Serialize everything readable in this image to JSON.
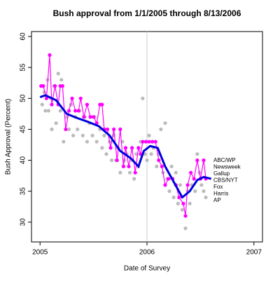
{
  "chart_data": {
    "type": "scatter",
    "title": "Bush approval from 1/1/2005 through 8/13/2006",
    "x_label": "Date of Survey",
    "y_label": "Bush Approval (Percent)",
    "xlim": [
      2004.92,
      2007.08
    ],
    "ylim": [
      26.8,
      60.8
    ],
    "xticks": [
      2005,
      2006,
      2007
    ],
    "yticks": [
      30,
      35,
      40,
      45,
      50,
      55,
      60
    ],
    "vline": 2006,
    "poll_labels": [
      "ABC/WP",
      "Newsweek",
      "Gallup",
      "CBS/NYT",
      "Fox",
      "Harris",
      "AP"
    ],
    "series": [
      {
        "color": "#bbbbbb",
        "x": [
          2005.02,
          2005.04,
          2005.05,
          2005.07,
          2005.08,
          2005.1,
          2005.11,
          2005.13,
          2005.15,
          2005.17,
          2005.19,
          2005.2,
          2005.22,
          2005.25,
          2005.27,
          2005.29,
          2005.31,
          2005.33,
          2005.35,
          2005.37,
          2005.4,
          2005.42,
          2005.44,
          2005.46,
          2005.49,
          2005.51,
          2005.53,
          2005.56,
          2005.58,
          2005.6,
          2005.62,
          2005.65,
          2005.67,
          2005.69,
          2005.71,
          2005.73,
          2005.75,
          2005.77,
          2005.79,
          2005.81,
          2005.84,
          2005.86,
          2005.88,
          2005.9,
          2005.92,
          2005.94,
          2005.96,
          2005.98,
          2006.0,
          2006.02,
          2006.04,
          2006.06,
          2006.09,
          2006.11,
          2006.13,
          2006.15,
          2006.17,
          2006.19,
          2006.21,
          2006.23,
          2006.25,
          2006.27,
          2006.29,
          2006.31,
          2006.33,
          2006.36,
          2006.38,
          2006.4,
          2006.42,
          2006.45,
          2006.47,
          2006.49,
          2006.51,
          2006.53,
          2006.55
        ],
        "values": [
          49,
          51,
          48,
          53,
          48,
          50,
          45,
          52,
          46,
          54,
          48,
          53,
          43,
          47,
          45,
          49,
          44,
          47,
          45,
          48,
          44,
          47,
          43,
          46,
          44,
          47,
          43,
          45,
          42,
          44,
          41,
          43,
          40,
          44,
          40,
          42,
          38,
          43,
          40,
          41,
          38,
          40,
          37,
          41,
          39,
          43,
          50,
          41,
          40,
          44,
          41,
          42,
          39,
          41,
          45,
          38,
          46,
          37,
          35,
          39,
          34,
          38,
          33,
          36,
          32,
          29,
          35,
          33,
          36,
          35,
          41,
          38,
          36,
          35,
          34
        ]
      },
      {
        "name": "Gallup",
        "color": "#ff00ff",
        "x": [
          2005.01,
          2005.03,
          2005.06,
          2005.09,
          2005.11,
          2005.14,
          2005.17,
          2005.19,
          2005.21,
          2005.24,
          2005.27,
          2005.3,
          2005.33,
          2005.36,
          2005.38,
          2005.41,
          2005.44,
          2005.47,
          2005.5,
          2005.53,
          2005.56,
          2005.58,
          2005.6,
          2005.63,
          2005.66,
          2005.69,
          2005.72,
          2005.75,
          2005.78,
          2005.8,
          2005.83,
          2005.86,
          2005.89,
          2005.92,
          2005.94,
          2005.96,
          2005.99,
          2006.02,
          2006.05,
          2006.08,
          2006.11,
          2006.14,
          2006.17,
          2006.2,
          2006.24,
          2006.27,
          2006.3,
          2006.34,
          2006.36,
          2006.38,
          2006.41,
          2006.44,
          2006.47,
          2006.5,
          2006.53,
          2006.55
        ],
        "values": [
          52,
          52,
          50,
          57,
          49,
          52,
          49,
          52,
          52,
          45,
          48,
          50,
          48,
          48,
          50,
          47,
          49,
          47,
          47,
          46,
          49,
          49,
          45,
          45,
          42,
          45,
          40,
          45,
          39,
          42,
          39,
          42,
          38,
          42,
          41,
          43,
          43,
          43,
          43,
          43,
          40,
          39,
          36,
          37,
          37,
          36,
          34,
          33,
          31,
          36,
          38,
          37,
          40,
          37,
          40,
          37
        ]
      },
      {
        "color": "#0000dd",
        "x": [
          2005.0,
          2005.05,
          2005.15,
          2005.25,
          2005.35,
          2005.45,
          2005.55,
          2005.65,
          2005.75,
          2005.85,
          2005.92,
          2005.97,
          2006.03,
          2006.1,
          2006.17,
          2006.25,
          2006.33,
          2006.4,
          2006.47,
          2006.53,
          2006.6
        ],
        "values": [
          50.2,
          50.5,
          49.7,
          47.5,
          46.8,
          46.2,
          45.5,
          44,
          41.5,
          40.3,
          39,
          41.5,
          42.3,
          42,
          39,
          36.5,
          34,
          35,
          36.8,
          37.3,
          37
        ]
      }
    ]
  }
}
